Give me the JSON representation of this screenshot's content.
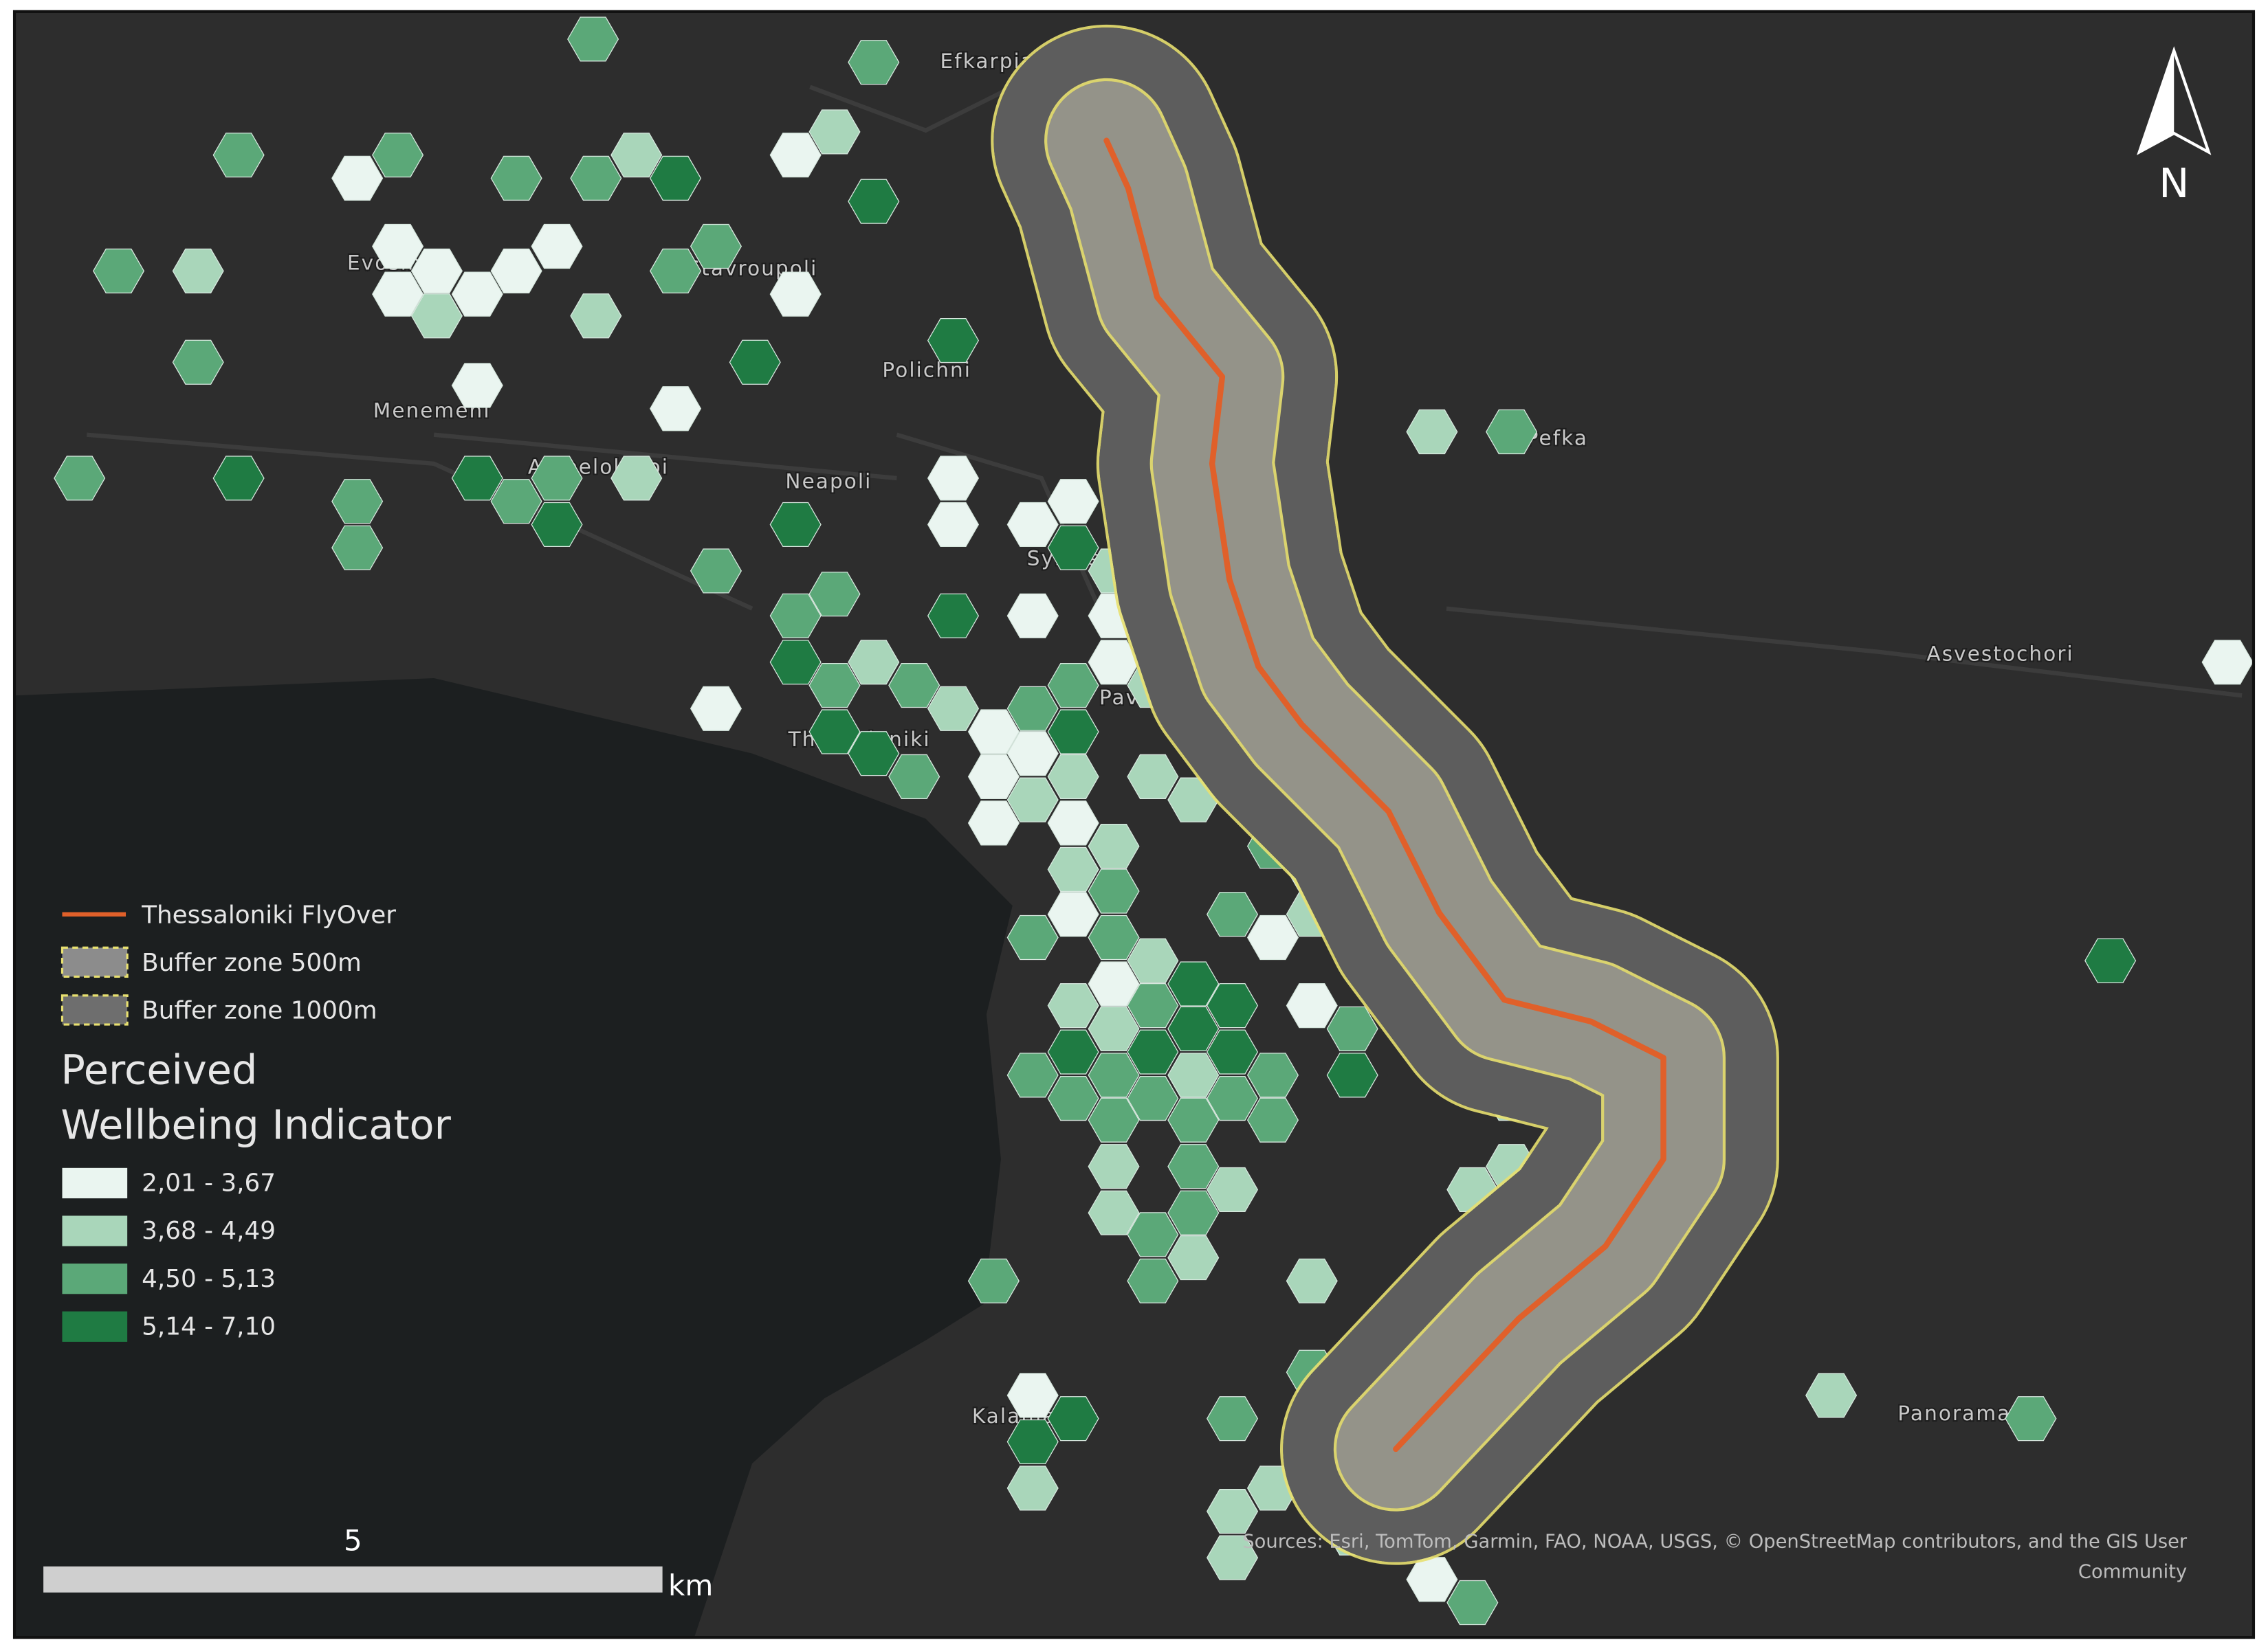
{
  "map": {
    "place_labels": [
      "Efkarpia",
      "Evosmos",
      "Stavroupoli",
      "Polichni",
      "Menemeni",
      "Ampelokipoi",
      "Neapoli",
      "Sykies",
      "Pavlos Melas",
      "Thessaloniki",
      "Pefka",
      "Asvestochori",
      "Kalamaria",
      "Panorama"
    ],
    "north_label": "N",
    "scale_bar": {
      "value_label": "5",
      "unit": "km"
    },
    "attribution": [
      "Sources: Esri, TomTom, Garmin, FAO, NOAA, USGS, © OpenStreetMap contributors, and the GIS User",
      "Community"
    ]
  },
  "legend": {
    "layers": [
      {
        "label": "Thessaloniki FlyOver",
        "color": "#e0602a"
      },
      {
        "label": "Buffer zone 500m",
        "color": "#8c8c8c"
      },
      {
        "label": "Buffer zone 1000m",
        "color": "#6e6e6e"
      }
    ],
    "title_lines": [
      "Perceived",
      "Wellbeing Indicator"
    ],
    "classes": [
      {
        "label": "2,01 - 3,67",
        "color": "#eaf5f0"
      },
      {
        "label": "3,68 - 4,49",
        "color": "#a9d6ba"
      },
      {
        "label": "4,50 - 5,13",
        "color": "#5ba878"
      },
      {
        "label": "5,14 - 7,10",
        "color": "#1f7b43"
      }
    ]
  }
}
